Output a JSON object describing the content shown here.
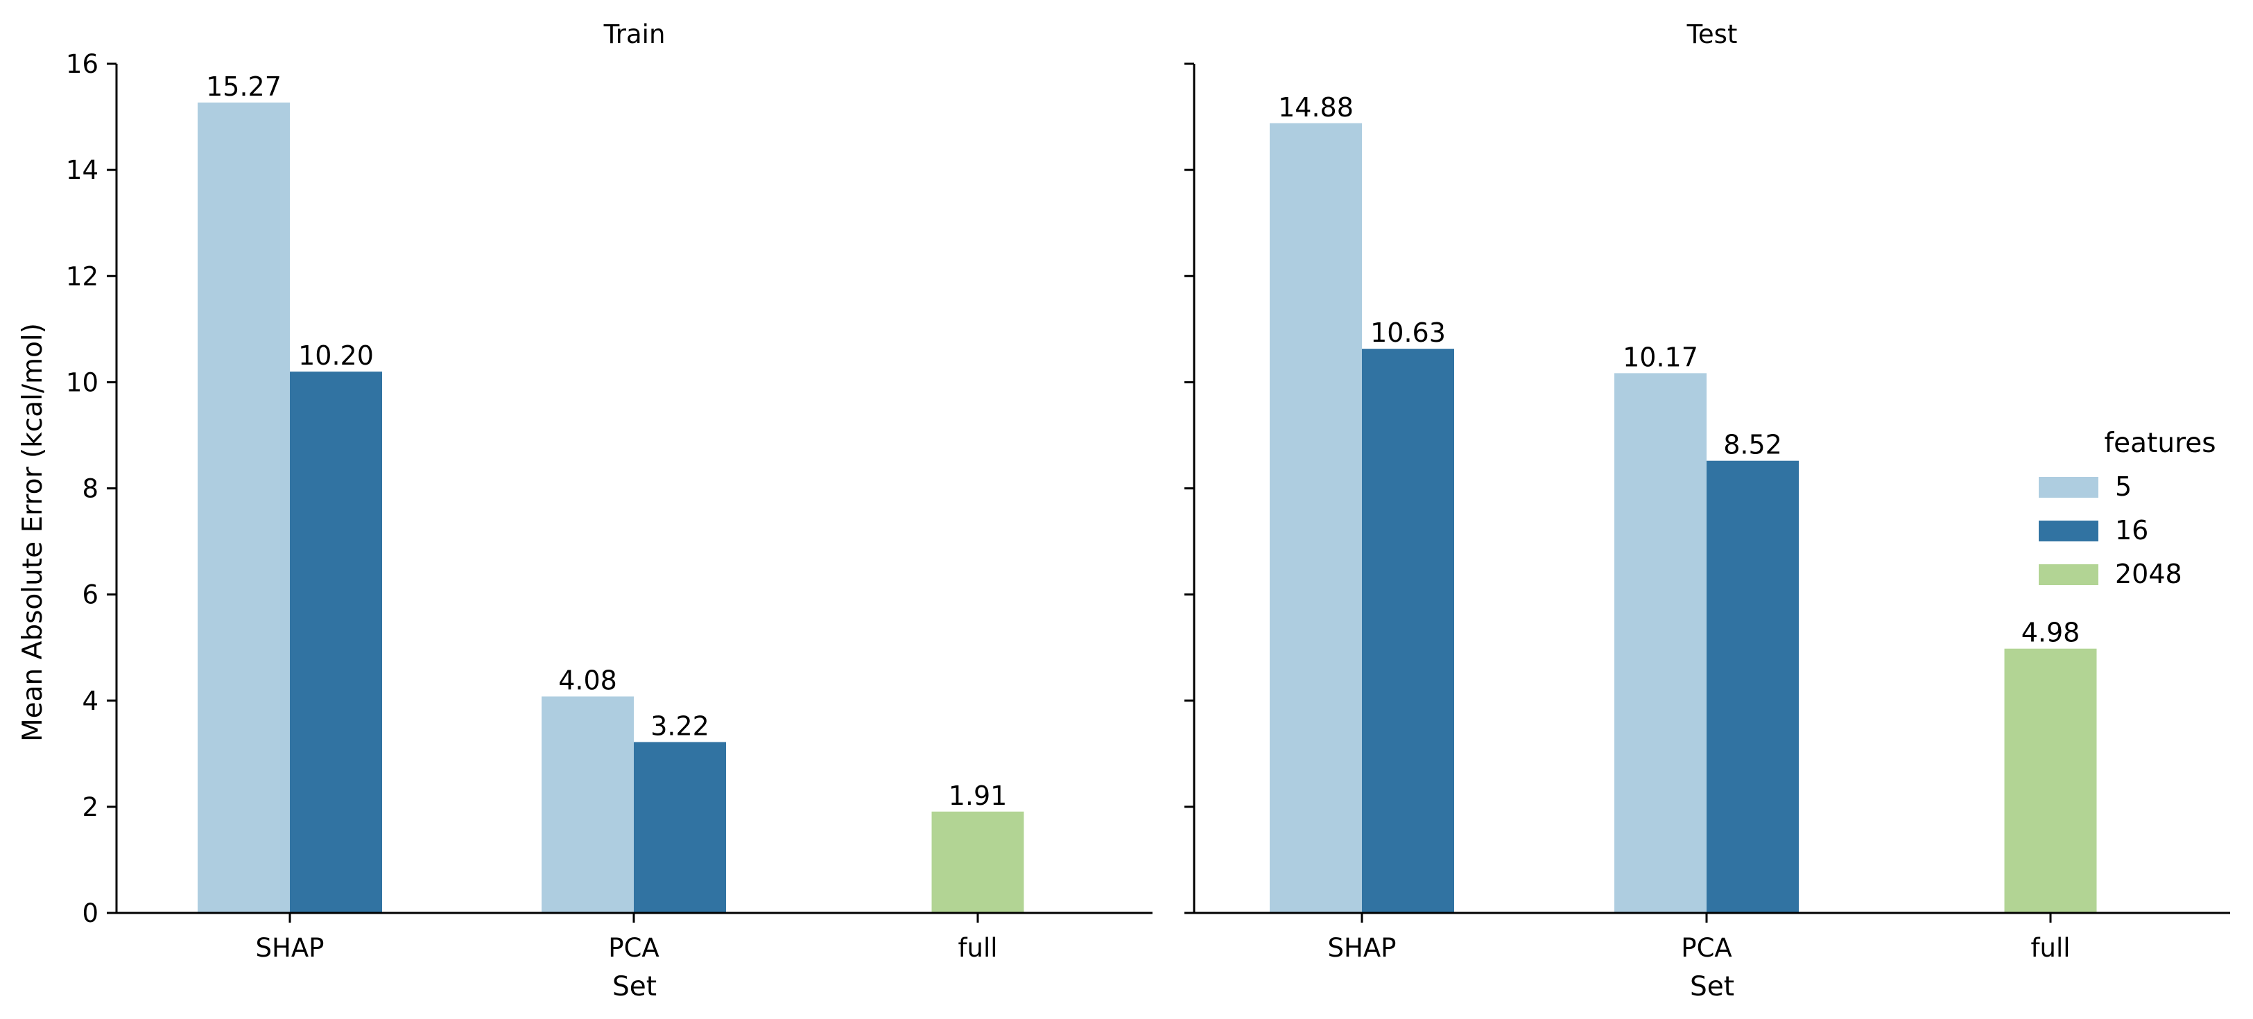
{
  "chart_data": {
    "type": "bar",
    "ylabel": "Mean Absolute Error (kcal/mol)",
    "ylim": [
      0,
      16
    ],
    "yticks": [
      0,
      2,
      4,
      6,
      8,
      10,
      12,
      14,
      16
    ],
    "grid": false,
    "legend": {
      "title": "features",
      "placement": "right",
      "entries": [
        {
          "name": "5",
          "color": "#aecde0"
        },
        {
          "name": "16",
          "color": "#3173a2"
        },
        {
          "name": "2048",
          "color": "#b2d494"
        }
      ]
    },
    "panels": [
      {
        "title": "Train",
        "xlabel": "Set",
        "categories": [
          "SHAP",
          "PCA",
          "full"
        ],
        "series": [
          {
            "name": "5",
            "values": [
              15.27,
              4.08,
              null
            ],
            "labels": [
              "15.27",
              "4.08",
              ""
            ]
          },
          {
            "name": "16",
            "values": [
              10.2,
              3.22,
              null
            ],
            "labels": [
              "10.20",
              "3.22",
              ""
            ]
          },
          {
            "name": "2048",
            "values": [
              null,
              null,
              1.91
            ],
            "labels": [
              "",
              "",
              "1.91"
            ]
          }
        ]
      },
      {
        "title": "Test",
        "xlabel": "Set",
        "categories": [
          "SHAP",
          "PCA",
          "full"
        ],
        "series": [
          {
            "name": "5",
            "values": [
              14.88,
              10.17,
              null
            ],
            "labels": [
              "14.88",
              "10.17",
              ""
            ]
          },
          {
            "name": "16",
            "values": [
              10.63,
              8.52,
              null
            ],
            "labels": [
              "10.63",
              "8.52",
              ""
            ]
          },
          {
            "name": "2048",
            "values": [
              null,
              null,
              4.98
            ],
            "labels": [
              "",
              "",
              "4.98"
            ]
          }
        ]
      }
    ]
  }
}
